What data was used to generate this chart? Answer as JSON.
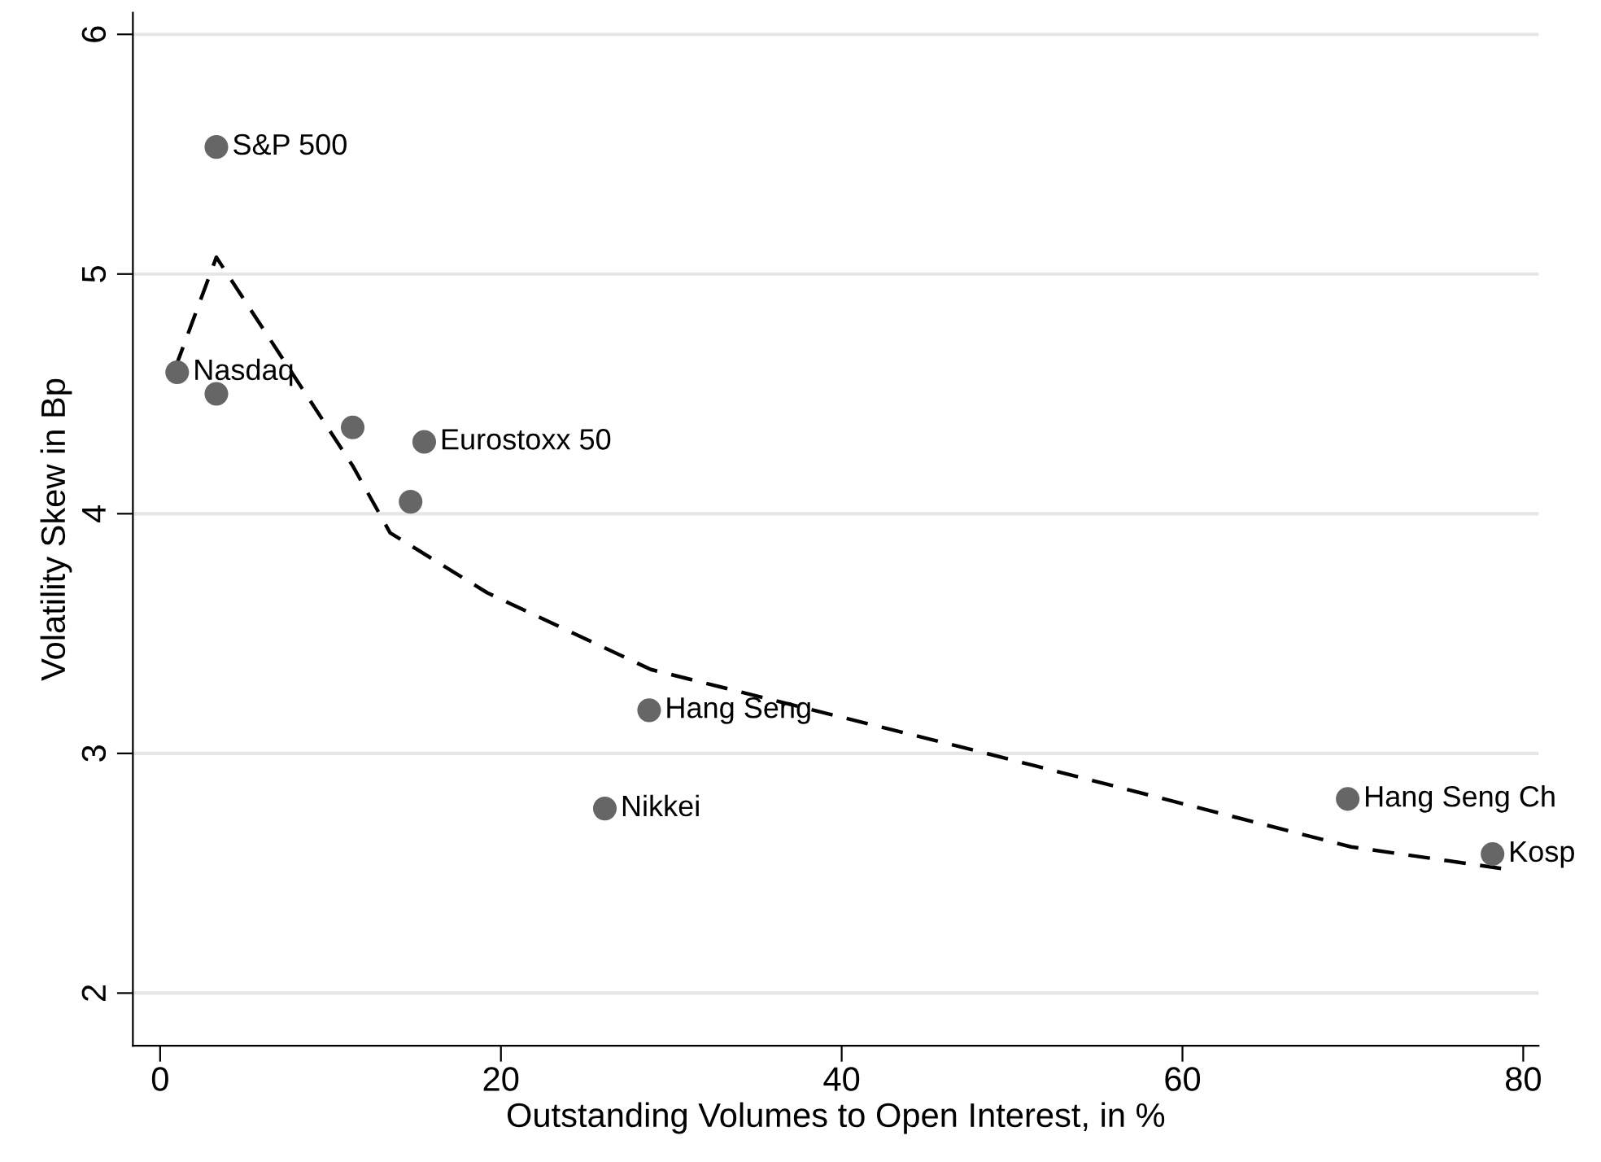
{
  "chart_data": {
    "type": "scatter",
    "xlabel": "Outstanding Volumes to Open Interest, in %",
    "ylabel": "Volatility Skew in Bp",
    "xlim": [
      -1.6,
      80.9
    ],
    "xticks": [
      0,
      20,
      40,
      60,
      80
    ],
    "ylim": [
      1.78,
      6.09
    ],
    "yticks": [
      2,
      3,
      4,
      5,
      6
    ],
    "grid": "y",
    "series": [
      {
        "color": "#666666",
        "marker": "circle",
        "x": [
          3.3,
          1.0,
          3.3,
          11.3,
          15.5,
          14.7,
          28.7,
          26.1,
          69.7,
          78.2
        ],
        "values": [
          5.53,
          4.59,
          4.5,
          4.36,
          4.3,
          4.05,
          3.18,
          2.77,
          2.81,
          2.58
        ],
        "value_labels": [
          "S&P 500",
          "Nasdaq",
          null,
          null,
          "Eurostoxx 50",
          null,
          "Hang Seng",
          "Nikkei",
          "Hang Seng Ch",
          "Kosp"
        ]
      },
      {
        "type": "line",
        "color": "#000000",
        "line_style": "dashed",
        "marker": "none",
        "x": [
          0.9,
          3.3,
          11.3,
          13.5,
          19.2,
          28.8,
          48.5,
          69.9,
          78.7
        ],
        "values": [
          4.61,
          5.07,
          4.2,
          3.92,
          3.67,
          3.35,
          3.0,
          2.61,
          2.52
        ]
      }
    ]
  }
}
